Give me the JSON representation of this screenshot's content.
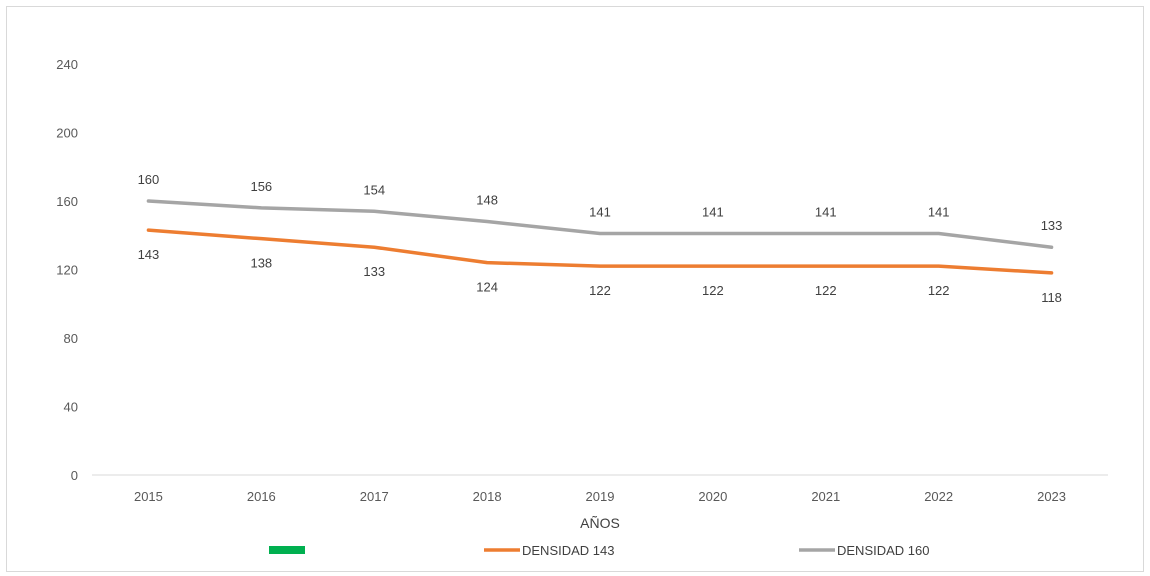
{
  "chart_data": {
    "type": "line",
    "categories": [
      "2015",
      "2016",
      "2017",
      "2018",
      "2019",
      "2020",
      "2021",
      "2022",
      "2023"
    ],
    "series": [
      {
        "name": "DENSIDAD 143",
        "color": "#ed7d31",
        "values": [
          143,
          138,
          133,
          124,
          122,
          122,
          122,
          122,
          118
        ]
      },
      {
        "name": "DENSIDAD 160",
        "color": "#a5a5a5",
        "values": [
          160,
          156,
          154,
          148,
          141,
          141,
          141,
          141,
          133
        ]
      }
    ],
    "legend_extra": {
      "name": "",
      "color": "#00b050"
    },
    "xlabel": "AÑOS",
    "ylabel": "",
    "ylim": [
      0,
      240
    ],
    "yticks": [
      "0",
      "40",
      "80",
      "120",
      "160",
      "200",
      "240"
    ],
    "grid": false,
    "legend_position": "bottom"
  }
}
